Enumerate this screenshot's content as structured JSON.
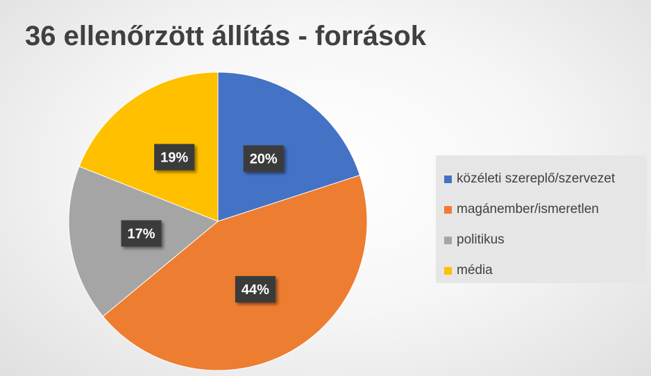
{
  "chart_data": {
    "type": "pie",
    "title": "36 ellenőrzött állítás - források",
    "slices": [
      {
        "name": "közéleti szereplő/szervezet",
        "value": 20,
        "label": "20%",
        "color": "#4472C4"
      },
      {
        "name": "magánember/ismeretlen",
        "value": 44,
        "label": "44%",
        "color": "#ED7D31"
      },
      {
        "name": "politikus",
        "value": 17,
        "label": "17%",
        "color": "#A5A5A5"
      },
      {
        "name": "média",
        "value": 19,
        "label": "19%",
        "color": "#FFC000"
      }
    ],
    "legend_position": "right",
    "data_label_style": "dark box, white bold text"
  }
}
